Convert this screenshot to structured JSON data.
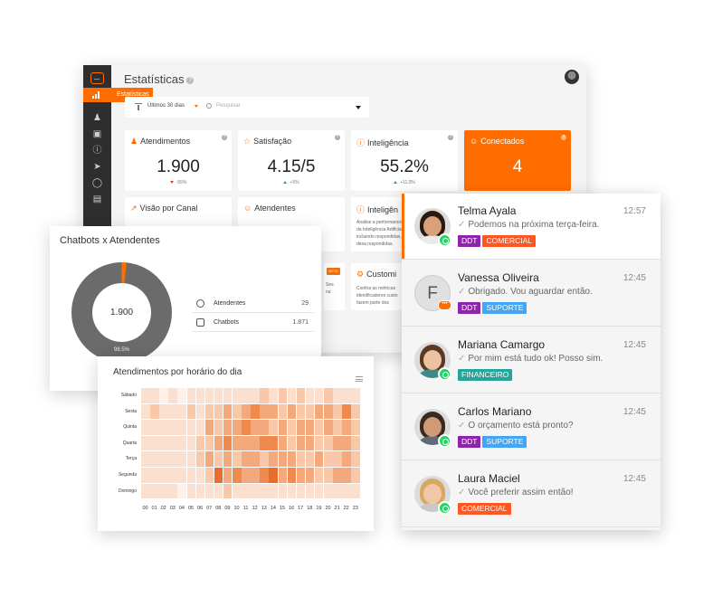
{
  "dashboard": {
    "title": "Estatísticas",
    "help_glyph": "?",
    "sidebar_active_label": "Estatísticas",
    "sidebar_icons": [
      "users-icon",
      "bot-icon",
      "info-icon",
      "send-icon",
      "chat-bubble-icon",
      "archive-icon"
    ],
    "filter": {
      "period": "Últimos 30 dias",
      "search_placeholder": "Pesquisar"
    },
    "cards": [
      {
        "title": "Atendimentos",
        "value": "1.900",
        "delta": "-55%",
        "trend": "down"
      },
      {
        "title": "Satisfação",
        "value": "4.15/5",
        "delta": "+5%",
        "trend": "up"
      },
      {
        "title": "Inteligência",
        "value": "55.2%",
        "delta": "+11.0%",
        "trend": "up"
      },
      {
        "title": "Conectados",
        "value": "4"
      }
    ],
    "cards_row2": [
      {
        "title": "Visão por Canal"
      },
      {
        "title": "Atendentes"
      },
      {
        "title": "Inteligên",
        "desc": "Analise a performance da Inteligência Artificial, incluindo respondidas, desa respondidas."
      }
    ],
    "cards_row3": [
      {
        "title": "Customi",
        "desc": "Confira as métricas identificadores custo fazem parte dos"
      }
    ],
    "partial_text": "Ses\nna",
    "beta_label": "BETA"
  },
  "chatbots_panel": {
    "title": "Chatbots x Atendentes",
    "donut_total": "1.900",
    "donut_pct": "98.5%",
    "legend": [
      {
        "label": "Atendentes",
        "value": "29",
        "icon": "person-icon"
      },
      {
        "label": "Chatbots",
        "value": "1.871",
        "icon": "bot-icon"
      }
    ]
  },
  "heatmap_panel": {
    "title": "Atendimentos por horário do dia",
    "days": [
      "Sábado",
      "Sexta",
      "Quinta",
      "Quarta",
      "Terça",
      "Segunda",
      "Domingo"
    ],
    "hours": [
      "00",
      "01",
      "02",
      "03",
      "04",
      "05",
      "06",
      "07",
      "08",
      "09",
      "10",
      "11",
      "12",
      "13",
      "14",
      "15",
      "16",
      "17",
      "18",
      "19",
      "20",
      "21",
      "22",
      "23"
    ]
  },
  "chat_data": {
    "type": "heatmap",
    "rows": [
      "Sábado",
      "Sexta",
      "Quinta",
      "Quarta",
      "Terça",
      "Segunda",
      "Domingo"
    ],
    "cols": [
      "00",
      "01",
      "02",
      "03",
      "04",
      "05",
      "06",
      "07",
      "08",
      "09",
      "10",
      "11",
      "12",
      "13",
      "14",
      "15",
      "16",
      "17",
      "18",
      "19",
      "20",
      "21",
      "22",
      "23"
    ],
    "values": [
      [
        1,
        1,
        0,
        1,
        0,
        1,
        1,
        1,
        1,
        1,
        1,
        1,
        1,
        2,
        1,
        2,
        1,
        2,
        1,
        1,
        2,
        1,
        1,
        1
      ],
      [
        1,
        2,
        1,
        1,
        1,
        2,
        1,
        2,
        2,
        3,
        2,
        3,
        4,
        3,
        3,
        2,
        3,
        2,
        2,
        3,
        3,
        2,
        4,
        2
      ],
      [
        1,
        1,
        1,
        1,
        1,
        1,
        1,
        3,
        2,
        3,
        3,
        4,
        3,
        3,
        2,
        3,
        2,
        3,
        3,
        2,
        3,
        2,
        3,
        2
      ],
      [
        1,
        1,
        1,
        1,
        1,
        1,
        2,
        2,
        3,
        4,
        3,
        3,
        3,
        4,
        4,
        3,
        2,
        3,
        3,
        2,
        2,
        3,
        3,
        2
      ],
      [
        1,
        1,
        1,
        1,
        1,
        1,
        2,
        3,
        2,
        3,
        2,
        3,
        3,
        2,
        3,
        3,
        3,
        2,
        2,
        3,
        2,
        2,
        3,
        2
      ],
      [
        1,
        1,
        1,
        1,
        1,
        1,
        1,
        2,
        5,
        3,
        4,
        3,
        3,
        4,
        5,
        3,
        4,
        3,
        3,
        2,
        2,
        3,
        3,
        2
      ],
      [
        1,
        1,
        1,
        1,
        0,
        1,
        1,
        1,
        1,
        2,
        1,
        1,
        1,
        1,
        1,
        1,
        1,
        1,
        1,
        1,
        1,
        1,
        1,
        1
      ]
    ]
  },
  "chats": [
    {
      "name": "Telma Ayala",
      "time": "12:57",
      "message": "Podemos na próxima terça-feira.",
      "tags": [
        {
          "label": "DDT",
          "color": "#8e24aa"
        },
        {
          "label": "COMERCIAL",
          "color": "#ff5722"
        }
      ],
      "channel": "whatsapp",
      "active": true,
      "avatar_letter": ""
    },
    {
      "name": "Vanessa Oliveira",
      "time": "12:45",
      "message": "Obrigado. Vou aguardar então.",
      "tags": [
        {
          "label": "DDT",
          "color": "#8e24aa"
        },
        {
          "label": "SUPORTE",
          "color": "#42a5f5"
        }
      ],
      "channel": "chat",
      "active": false,
      "avatar_letter": "F",
      "chat_badge": "•••"
    },
    {
      "name": "Mariana Camargo",
      "time": "12:45",
      "message": "Por mim está tudo ok! Posso sim.",
      "tags": [
        {
          "label": "FINANCEIRO",
          "color": "#26a69a"
        }
      ],
      "channel": "whatsapp",
      "active": false,
      "avatar_letter": ""
    },
    {
      "name": "Carlos Mariano",
      "time": "12:45",
      "message": "O orçamento está pronto?",
      "tags": [
        {
          "label": "DDT",
          "color": "#8e24aa"
        },
        {
          "label": "SUPORTE",
          "color": "#42a5f5"
        }
      ],
      "channel": "whatsapp",
      "active": false,
      "avatar_letter": ""
    },
    {
      "name": "Laura Maciel",
      "time": "12:45",
      "message": "Você preferir assim então!",
      "tags": [
        {
          "label": "COMERCIAL",
          "color": "#ff5722"
        }
      ],
      "channel": "whatsapp",
      "active": false,
      "avatar_letter": ""
    }
  ],
  "colors": {
    "accent": "#ff6d00",
    "rail": "#2e2e2e",
    "donut_gray": "#6b6b6b",
    "whatsapp": "#25d366"
  }
}
